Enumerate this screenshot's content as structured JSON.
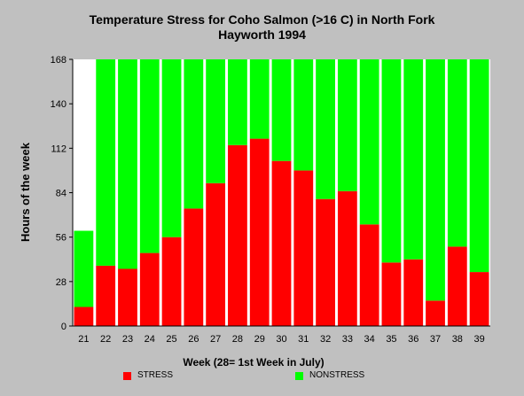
{
  "chart_data": {
    "type": "bar",
    "stacked": true,
    "title": "Temperature Stress for Coho Salmon (>16 C) in North Fork",
    "subtitle": "Hayworth 1994",
    "xlabel": "Week (28= 1st Week in July)",
    "ylabel": "Hours of the week",
    "ylim": [
      0,
      168
    ],
    "yticks": [
      0,
      28,
      56,
      84,
      112,
      140,
      168
    ],
    "grid": false,
    "legend_position": "bottom",
    "categories": [
      "21",
      "22",
      "23",
      "24",
      "25",
      "26",
      "27",
      "28",
      "29",
      "30",
      "31",
      "32",
      "33",
      "34",
      "35",
      "36",
      "37",
      "38",
      "39"
    ],
    "series": [
      {
        "name": "STRESS",
        "color": "#ff0000",
        "values": [
          12,
          38,
          36,
          46,
          56,
          74,
          90,
          114,
          118,
          104,
          98,
          80,
          85,
          64,
          40,
          42,
          16,
          50,
          34
        ]
      },
      {
        "name": "NONSTRESS",
        "color": "#00ff00",
        "values": [
          48,
          130,
          132,
          122,
          112,
          94,
          78,
          54,
          50,
          64,
          70,
          88,
          83,
          104,
          128,
          126,
          152,
          118,
          134
        ]
      }
    ]
  }
}
